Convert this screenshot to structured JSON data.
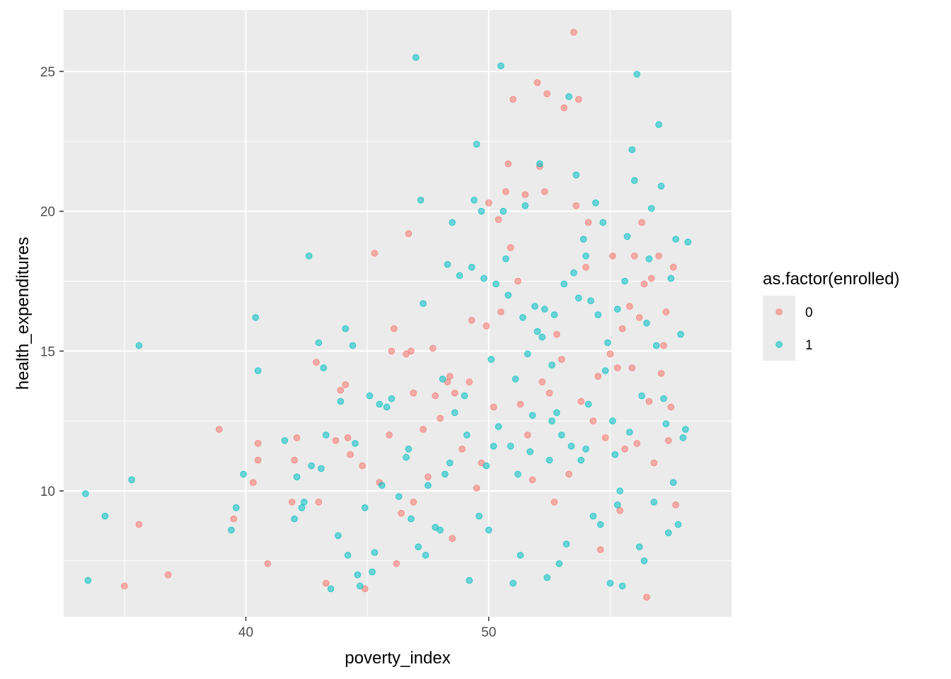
{
  "chart_data": {
    "type": "scatter",
    "xlabel": "poverty_index",
    "ylabel": "health_expenditures",
    "xlim": [
      32.5,
      60
    ],
    "ylim": [
      5.5,
      27.2
    ],
    "x_ticks": [
      40,
      50
    ],
    "x_tick_labels": [
      "40",
      "50"
    ],
    "y_ticks": [
      10,
      15,
      20,
      25
    ],
    "y_tick_labels": [
      "10",
      "15",
      "20",
      "25"
    ],
    "grid": true,
    "panel_background": "#ebebeb",
    "legend": {
      "title": "as.factor(enrolled)",
      "placement": "right"
    },
    "series": [
      {
        "name": "0",
        "color": "#F8766D",
        "points": [
          [
            35.0,
            6.6
          ],
          [
            35.6,
            8.8
          ],
          [
            36.8,
            7.0
          ],
          [
            38.9,
            12.2
          ],
          [
            39.5,
            9.0
          ],
          [
            40.3,
            10.3
          ],
          [
            40.5,
            11.7
          ],
          [
            40.5,
            11.1
          ],
          [
            40.9,
            7.4
          ],
          [
            41.9,
            9.6
          ],
          [
            42.1,
            11.9
          ],
          [
            42.0,
            11.1
          ],
          [
            43.0,
            9.6
          ],
          [
            42.9,
            14.6
          ],
          [
            43.3,
            6.7
          ],
          [
            43.7,
            11.8
          ],
          [
            43.9,
            13.6
          ],
          [
            44.1,
            13.8
          ],
          [
            44.2,
            11.9
          ],
          [
            44.3,
            11.3
          ],
          [
            44.8,
            10.9
          ],
          [
            44.9,
            6.5
          ],
          [
            45.3,
            18.5
          ],
          [
            45.5,
            10.3
          ],
          [
            45.9,
            12.0
          ],
          [
            46.0,
            15.0
          ],
          [
            46.1,
            15.8
          ],
          [
            46.2,
            7.4
          ],
          [
            46.4,
            9.2
          ],
          [
            46.6,
            14.9
          ],
          [
            46.7,
            19.2
          ],
          [
            46.8,
            15.0
          ],
          [
            46.9,
            13.5
          ],
          [
            46.9,
            9.6
          ],
          [
            47.3,
            12.2
          ],
          [
            47.5,
            10.5
          ],
          [
            47.7,
            15.1
          ],
          [
            47.8,
            13.4
          ],
          [
            48.0,
            12.6
          ],
          [
            48.3,
            13.9
          ],
          [
            48.4,
            14.1
          ],
          [
            48.6,
            13.5
          ],
          [
            48.5,
            8.3
          ],
          [
            48.9,
            11.5
          ],
          [
            49.2,
            13.9
          ],
          [
            49.3,
            16.1
          ],
          [
            49.5,
            10.1
          ],
          [
            49.7,
            11.0
          ],
          [
            49.9,
            15.9
          ],
          [
            50.0,
            20.3
          ],
          [
            50.2,
            13.0
          ],
          [
            50.4,
            19.7
          ],
          [
            50.5,
            16.4
          ],
          [
            50.7,
            20.7
          ],
          [
            50.8,
            21.7
          ],
          [
            50.9,
            18.7
          ],
          [
            51.0,
            24.0
          ],
          [
            51.2,
            17.5
          ],
          [
            51.3,
            13.1
          ],
          [
            51.5,
            20.6
          ],
          [
            51.6,
            12.0
          ],
          [
            51.8,
            10.4
          ],
          [
            52.0,
            24.6
          ],
          [
            52.1,
            21.6
          ],
          [
            52.2,
            13.9
          ],
          [
            52.3,
            20.7
          ],
          [
            52.4,
            24.2
          ],
          [
            52.5,
            13.5
          ],
          [
            52.7,
            9.6
          ],
          [
            52.8,
            15.6
          ],
          [
            53.0,
            14.7
          ],
          [
            53.1,
            23.7
          ],
          [
            53.3,
            10.6
          ],
          [
            53.5,
            26.4
          ],
          [
            53.6,
            20.2
          ],
          [
            53.7,
            24.0
          ],
          [
            53.8,
            13.2
          ],
          [
            54.0,
            18.0
          ],
          [
            54.1,
            19.6
          ],
          [
            54.3,
            12.5
          ],
          [
            54.5,
            14.1
          ],
          [
            54.6,
            7.9
          ],
          [
            54.8,
            11.9
          ],
          [
            55.0,
            14.9
          ],
          [
            55.1,
            18.4
          ],
          [
            55.3,
            14.4
          ],
          [
            55.4,
            9.3
          ],
          [
            55.5,
            15.8
          ],
          [
            55.6,
            11.5
          ],
          [
            55.8,
            16.6
          ],
          [
            55.9,
            14.4
          ],
          [
            56.0,
            18.4
          ],
          [
            56.1,
            11.7
          ],
          [
            56.2,
            16.2
          ],
          [
            56.3,
            19.6
          ],
          [
            56.4,
            17.4
          ],
          [
            56.5,
            6.2
          ],
          [
            56.6,
            13.2
          ],
          [
            56.7,
            17.6
          ],
          [
            56.8,
            11.0
          ],
          [
            57.0,
            18.4
          ],
          [
            57.1,
            14.2
          ],
          [
            57.2,
            15.2
          ],
          [
            57.3,
            16.4
          ],
          [
            57.5,
            13.0
          ],
          [
            57.6,
            18.0
          ],
          [
            57.7,
            9.5
          ],
          [
            57.4,
            11.8
          ]
        ]
      },
      {
        "name": "1",
        "color": "#00BFC4",
        "points": [
          [
            33.4,
            9.9
          ],
          [
            33.5,
            6.8
          ],
          [
            34.2,
            9.1
          ],
          [
            35.3,
            10.4
          ],
          [
            35.6,
            15.2
          ],
          [
            39.4,
            8.6
          ],
          [
            39.6,
            9.4
          ],
          [
            39.9,
            10.6
          ],
          [
            40.4,
            16.2
          ],
          [
            40.5,
            14.3
          ],
          [
            41.6,
            11.8
          ],
          [
            42.0,
            9.0
          ],
          [
            42.1,
            10.5
          ],
          [
            42.3,
            9.4
          ],
          [
            42.4,
            9.6
          ],
          [
            42.6,
            18.4
          ],
          [
            42.7,
            10.9
          ],
          [
            43.0,
            15.3
          ],
          [
            43.1,
            10.8
          ],
          [
            43.2,
            14.4
          ],
          [
            43.3,
            12.0
          ],
          [
            43.5,
            6.5
          ],
          [
            43.8,
            8.4
          ],
          [
            43.9,
            13.2
          ],
          [
            44.1,
            15.8
          ],
          [
            44.2,
            7.7
          ],
          [
            44.4,
            15.2
          ],
          [
            44.5,
            11.7
          ],
          [
            44.6,
            7.0
          ],
          [
            44.7,
            6.6
          ],
          [
            44.9,
            9.4
          ],
          [
            45.1,
            13.4
          ],
          [
            45.2,
            7.1
          ],
          [
            45.3,
            7.8
          ],
          [
            45.5,
            13.1
          ],
          [
            45.6,
            10.2
          ],
          [
            45.8,
            13.0
          ],
          [
            46.0,
            13.3
          ],
          [
            46.3,
            9.8
          ],
          [
            46.6,
            11.2
          ],
          [
            46.7,
            11.5
          ],
          [
            46.8,
            9.0
          ],
          [
            47.0,
            25.5
          ],
          [
            47.1,
            8.0
          ],
          [
            47.2,
            20.4
          ],
          [
            47.3,
            16.7
          ],
          [
            47.4,
            7.7
          ],
          [
            47.5,
            10.2
          ],
          [
            47.8,
            8.7
          ],
          [
            48.0,
            8.6
          ],
          [
            48.1,
            14.0
          ],
          [
            48.2,
            10.6
          ],
          [
            48.3,
            18.1
          ],
          [
            48.4,
            11.0
          ],
          [
            48.5,
            19.6
          ],
          [
            48.6,
            12.8
          ],
          [
            48.8,
            17.7
          ],
          [
            49.0,
            13.4
          ],
          [
            49.1,
            12.0
          ],
          [
            49.2,
            6.8
          ],
          [
            49.3,
            18.0
          ],
          [
            49.4,
            20.4
          ],
          [
            49.5,
            22.4
          ],
          [
            49.6,
            9.1
          ],
          [
            49.7,
            20.0
          ],
          [
            49.8,
            17.6
          ],
          [
            49.9,
            10.9
          ],
          [
            50.0,
            8.6
          ],
          [
            50.1,
            14.7
          ],
          [
            50.2,
            11.6
          ],
          [
            50.3,
            17.4
          ],
          [
            50.4,
            12.3
          ],
          [
            50.5,
            25.2
          ],
          [
            50.6,
            20.0
          ],
          [
            50.7,
            18.3
          ],
          [
            50.8,
            17.0
          ],
          [
            50.9,
            11.6
          ],
          [
            51.0,
            6.7
          ],
          [
            51.1,
            14.0
          ],
          [
            51.2,
            10.6
          ],
          [
            51.3,
            7.7
          ],
          [
            51.4,
            16.2
          ],
          [
            51.5,
            20.2
          ],
          [
            51.6,
            14.9
          ],
          [
            51.7,
            11.4
          ],
          [
            51.8,
            12.7
          ],
          [
            51.9,
            16.6
          ],
          [
            52.0,
            15.7
          ],
          [
            52.1,
            21.7
          ],
          [
            52.2,
            15.5
          ],
          [
            52.3,
            16.5
          ],
          [
            52.4,
            6.9
          ],
          [
            52.5,
            11.1
          ],
          [
            52.6,
            12.5
          ],
          [
            52.7,
            16.3
          ],
          [
            52.8,
            12.8
          ],
          [
            52.9,
            7.4
          ],
          [
            53.0,
            12.0
          ],
          [
            53.1,
            17.4
          ],
          [
            53.2,
            8.1
          ],
          [
            53.3,
            24.1
          ],
          [
            53.4,
            11.6
          ],
          [
            53.5,
            17.8
          ],
          [
            53.6,
            21.3
          ],
          [
            53.7,
            16.9
          ],
          [
            53.8,
            11.1
          ],
          [
            53.9,
            19.0
          ],
          [
            54.0,
            18.4
          ],
          [
            54.1,
            13.1
          ],
          [
            54.2,
            16.8
          ],
          [
            54.3,
            9.1
          ],
          [
            54.4,
            20.3
          ],
          [
            54.5,
            16.3
          ],
          [
            54.6,
            8.8
          ],
          [
            54.7,
            19.6
          ],
          [
            54.8,
            14.3
          ],
          [
            54.9,
            15.3
          ],
          [
            55.0,
            6.7
          ],
          [
            55.1,
            12.5
          ],
          [
            55.2,
            11.3
          ],
          [
            55.3,
            16.5
          ],
          [
            55.4,
            10.0
          ],
          [
            55.5,
            6.6
          ],
          [
            55.6,
            17.5
          ],
          [
            55.7,
            19.1
          ],
          [
            55.8,
            12.1
          ],
          [
            55.9,
            22.2
          ],
          [
            56.0,
            21.1
          ],
          [
            56.1,
            24.9
          ],
          [
            56.2,
            8.0
          ],
          [
            56.3,
            13.4
          ],
          [
            56.4,
            7.5
          ],
          [
            56.5,
            16.0
          ],
          [
            56.6,
            18.3
          ],
          [
            56.7,
            20.1
          ],
          [
            56.8,
            9.6
          ],
          [
            56.9,
            15.2
          ],
          [
            57.0,
            23.1
          ],
          [
            57.1,
            20.9
          ],
          [
            57.2,
            13.3
          ],
          [
            57.3,
            12.4
          ],
          [
            57.4,
            8.5
          ],
          [
            57.5,
            17.6
          ],
          [
            57.6,
            10.3
          ],
          [
            57.7,
            19.0
          ],
          [
            57.8,
            8.8
          ],
          [
            57.9,
            15.6
          ],
          [
            58.0,
            11.9
          ],
          [
            58.1,
            12.2
          ],
          [
            58.2,
            18.9
          ],
          [
            55.3,
            9.5
          ],
          [
            54.0,
            11.5
          ],
          [
            52.6,
            14.5
          ]
        ]
      }
    ]
  }
}
